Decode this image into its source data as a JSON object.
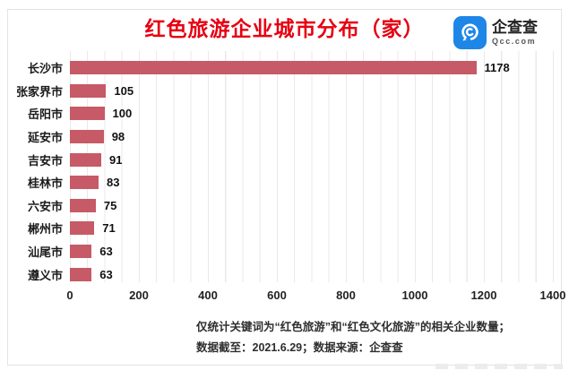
{
  "header": {
    "title": "红色旅游企业城市分布（家）",
    "title_color": "#e60012",
    "logo": {
      "name": "企查查",
      "domain": "Qcc.com",
      "icon": "qcc-spiral-icon",
      "icon_color": "#1e86e6"
    }
  },
  "chart_data": {
    "type": "bar",
    "orientation": "horizontal",
    "title": "红色旅游企业城市分布（家）",
    "categories": [
      "长沙市",
      "张家界市",
      "岳阳市",
      "延安市",
      "吉安市",
      "桂林市",
      "六安市",
      "郴州市",
      "汕尾市",
      "遵义市"
    ],
    "values": [
      1178,
      105,
      100,
      98,
      91,
      83,
      75,
      71,
      63,
      63
    ],
    "value_labels_shown": true,
    "xlabel": "",
    "ylabel": "",
    "xlim": [
      0,
      1400
    ],
    "x_tick_labels": [
      "0",
      "200",
      "400",
      "600",
      "800",
      "1000",
      "1200",
      "1400"
    ],
    "grid": "vertical, minor every 50",
    "grid_color": "#e9e9e9",
    "bar_color": "#c65a66"
  },
  "footer": {
    "line1": "仅统计关键词为“红色旅游”和“红色文化旅游”的相关企业数量；",
    "line2": "数据截至：2021.6.29；数据来源：企查查"
  }
}
